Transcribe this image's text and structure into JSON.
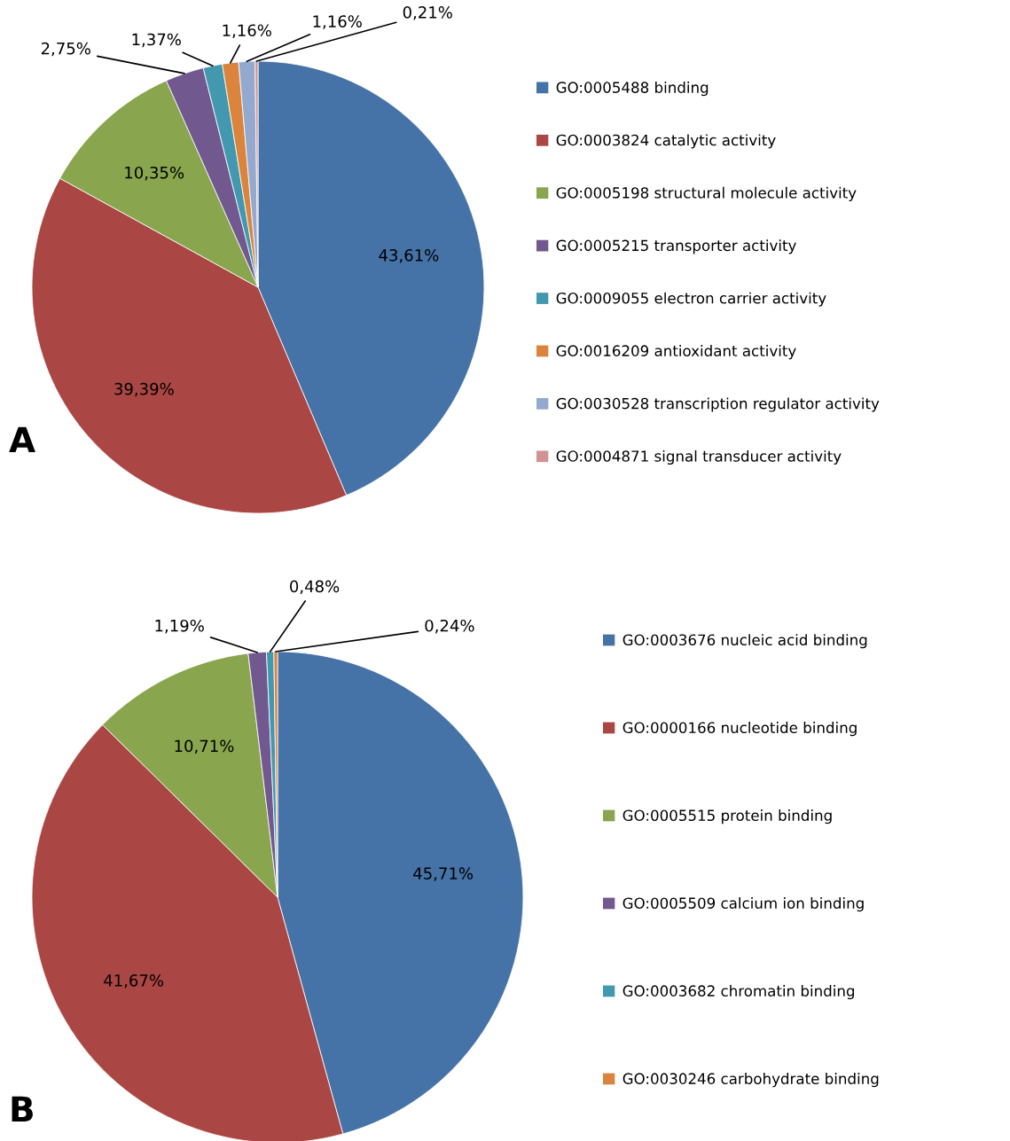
{
  "chart_data": [
    {
      "type": "pie",
      "legend": "right",
      "annotations": [
        "A"
      ],
      "categories": [
        "GO:0005488 binding",
        "GO:0003824 catalytic activity",
        "GO:0005198 structural molecule activity",
        "GO:0005215 transporter activity",
        "GO:0009055 electron carrier activity",
        "GO:0016209 antioxidant activity",
        "GO:0030528 transcription regulator activity",
        "GO:0004871 signal transducer activity"
      ],
      "values": [
        43.61,
        39.39,
        10.35,
        2.75,
        1.37,
        1.16,
        1.16,
        0.21
      ],
      "value_labels": [
        "43,61%",
        "39,39%",
        "10,35%",
        "2,75%",
        "1,37%",
        "1,16%",
        "1,16%",
        "0,21%"
      ],
      "colors": [
        "#4572a7",
        "#aa4643",
        "#89a54e",
        "#71588f",
        "#4198af",
        "#db843d",
        "#93a9cf",
        "#d19392"
      ]
    },
    {
      "type": "pie",
      "legend": "right",
      "annotations": [
        "B"
      ],
      "categories": [
        "GO:0003676 nucleic acid binding",
        "GO:0000166 nucleotide binding",
        "GO:0005515 protein binding",
        "GO:0005509 calcium ion binding",
        "GO:0003682 chromatin binding",
        "GO:0030246 carbohydrate binding"
      ],
      "values": [
        45.71,
        41.67,
        10.71,
        1.19,
        0.48,
        0.24
      ],
      "value_labels": [
        "45,71%",
        "41,67%",
        "10,71%",
        "1,19%",
        "0,48%",
        "0,24%"
      ],
      "colors": [
        "#4572a7",
        "#aa4643",
        "#89a54e",
        "#71588f",
        "#4198af",
        "#db843d"
      ]
    }
  ]
}
